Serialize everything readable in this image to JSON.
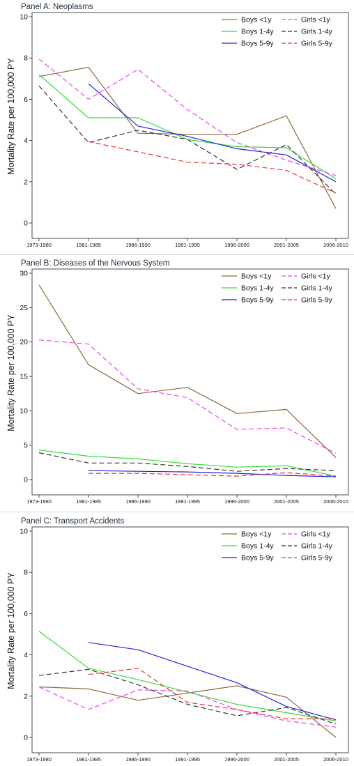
{
  "chart_data": [
    {
      "type": "line",
      "title": "Panel A: Neoplasms",
      "ylabel": "Mortality Rate per 100,000 PY",
      "xlabel": "",
      "categories": [
        "1973-1980",
        "1981-1985",
        "1986-1990",
        "1991-1995",
        "1996-2000",
        "2001-2005",
        "2006-2010"
      ],
      "ylim": [
        0,
        10
      ],
      "yticks": [
        0,
        2,
        4,
        6,
        8,
        10
      ],
      "legend_position": "top-right",
      "series": [
        {
          "name": "Boys <1y",
          "color": "#8b6a3a",
          "dash": "solid",
          "values": [
            7.1,
            7.55,
            4.35,
            4.3,
            4.3,
            5.2,
            0.7
          ]
        },
        {
          "name": "Boys 1-4y",
          "color": "#33dd33",
          "dash": "solid",
          "values": [
            7.2,
            5.1,
            5.1,
            4.05,
            3.7,
            3.65,
            2.15
          ]
        },
        {
          "name": "Boys 5-9y",
          "color": "#2222dd",
          "dash": "solid",
          "values": [
            null,
            6.75,
            4.7,
            4.2,
            3.6,
            3.3,
            2.0
          ]
        },
        {
          "name": "Girls <1y",
          "color": "#ee44ee",
          "dash": "long",
          "values": [
            7.95,
            6.0,
            7.45,
            5.5,
            3.9,
            3.05,
            2.3
          ]
        },
        {
          "name": "Girls 1-4y",
          "color": "#333333",
          "dash": "long",
          "values": [
            6.65,
            3.9,
            4.5,
            4.05,
            2.6,
            3.8,
            1.4
          ]
        },
        {
          "name": "Girls 5-9y",
          "color": "#ee3333",
          "dash": "long",
          "values": [
            null,
            3.95,
            3.45,
            2.95,
            2.85,
            2.55,
            1.45
          ]
        }
      ]
    },
    {
      "type": "line",
      "title": "Panel B: Diseases of the Nervous System",
      "ylabel": "Mortality Rate per 100,000 PY",
      "xlabel": "",
      "categories": [
        "1973-1980",
        "1981-1985",
        "1986-1990",
        "1991-1995",
        "1996-2000",
        "2001-2005",
        "2006-2010"
      ],
      "ylim": [
        0,
        30
      ],
      "yticks": [
        0,
        5,
        10,
        15,
        20,
        25,
        30
      ],
      "legend_position": "top-right",
      "series": [
        {
          "name": "Boys <1y",
          "color": "#8b6a3a",
          "dash": "solid",
          "values": [
            28.3,
            16.7,
            12.5,
            13.4,
            9.6,
            10.2,
            3.2
          ]
        },
        {
          "name": "Boys 1-4y",
          "color": "#33dd33",
          "dash": "solid",
          "values": [
            4.3,
            3.4,
            3.0,
            2.3,
            1.8,
            2.0,
            0.5
          ]
        },
        {
          "name": "Boys 5-9y",
          "color": "#2222dd",
          "dash": "solid",
          "values": [
            null,
            1.3,
            1.2,
            1.1,
            0.9,
            0.6,
            0.4
          ]
        },
        {
          "name": "Girls <1y",
          "color": "#ee44ee",
          "dash": "long",
          "values": [
            20.3,
            19.7,
            13.2,
            11.9,
            7.3,
            7.5,
            3.8
          ]
        },
        {
          "name": "Girls 1-4y",
          "color": "#333333",
          "dash": "long",
          "values": [
            3.9,
            2.4,
            2.4,
            1.9,
            1.2,
            1.6,
            1.3
          ]
        },
        {
          "name": "Girls 5-9y",
          "color": "#ee3333",
          "dash": "long",
          "values": [
            null,
            0.9,
            0.9,
            0.7,
            0.5,
            1.0,
            0.5
          ]
        }
      ]
    },
    {
      "type": "line",
      "title": "Panel C: Transport Accidents",
      "ylabel": "Mortality Rate per 100,000 PY",
      "xlabel": "",
      "categories": [
        "1973-1980",
        "1981-1985",
        "1986-1990",
        "1991-1995",
        "1996-2000",
        "2001-2005",
        "2006-2010"
      ],
      "ylim": [
        0,
        10
      ],
      "yticks": [
        0,
        2,
        4,
        6,
        8,
        10
      ],
      "legend_position": "top-right",
      "series": [
        {
          "name": "Boys <1y",
          "color": "#8b6a3a",
          "dash": "solid",
          "values": [
            2.45,
            2.35,
            1.8,
            2.15,
            2.5,
            1.95,
            0.0
          ]
        },
        {
          "name": "Boys 1-4y",
          "color": "#33dd33",
          "dash": "solid",
          "values": [
            5.15,
            3.35,
            2.8,
            2.2,
            1.6,
            1.2,
            0.8
          ]
        },
        {
          "name": "Boys 5-9y",
          "color": "#2222dd",
          "dash": "solid",
          "values": [
            null,
            4.6,
            4.25,
            3.45,
            2.65,
            1.5,
            0.85
          ]
        },
        {
          "name": "Girls <1y",
          "color": "#ee44ee",
          "dash": "long",
          "values": [
            2.45,
            1.35,
            2.3,
            2.25,
            1.35,
            0.8,
            0.5
          ]
        },
        {
          "name": "Girls 1-4y",
          "color": "#333333",
          "dash": "long",
          "values": [
            3.0,
            3.3,
            2.55,
            1.6,
            1.05,
            1.45,
            0.65
          ]
        },
        {
          "name": "Girls 5-9y",
          "color": "#ee3333",
          "dash": "long",
          "values": [
            null,
            3.05,
            3.35,
            1.7,
            1.35,
            0.9,
            0.9
          ]
        }
      ]
    }
  ]
}
